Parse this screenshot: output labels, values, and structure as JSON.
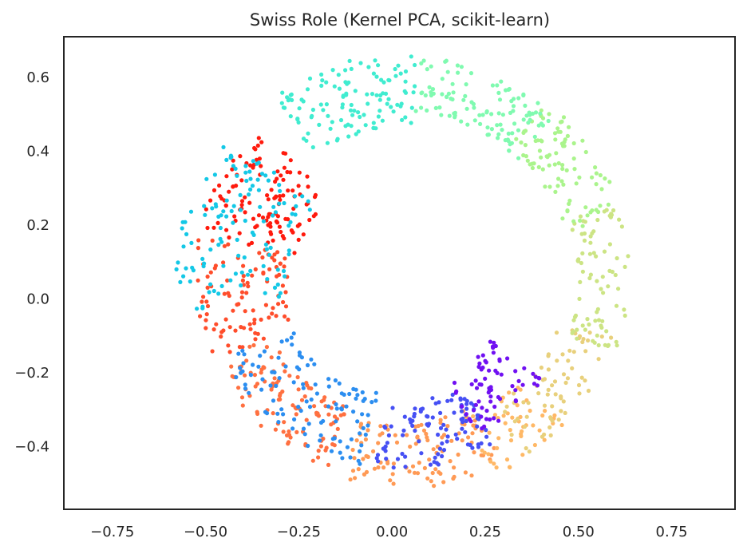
{
  "chart_data": {
    "type": "scatter",
    "title": "Swiss Role (Kernel PCA, scikit-learn)",
    "xlabel": "",
    "ylabel": "",
    "xlim": [
      -0.88,
      0.92
    ],
    "ylim": [
      -0.57,
      0.71
    ],
    "xticks": [
      "−0.75",
      "−0.50",
      "−0.25",
      "0.00",
      "0.25",
      "0.50",
      "0.75"
    ],
    "xtick_values": [
      -0.75,
      -0.5,
      -0.25,
      0.0,
      0.25,
      0.5,
      0.75
    ],
    "yticks": [
      "−0.4",
      "−0.2",
      "0.0",
      "0.2",
      "0.4",
      "0.6"
    ],
    "ytick_values": [
      -0.4,
      -0.2,
      0.0,
      0.2,
      0.4,
      0.6
    ],
    "grid": false,
    "legend": "none",
    "colormap": "rainbow",
    "series": [
      {
        "color": "#ff1a0d",
        "arc_start_deg": 168,
        "arc_end_deg": 132,
        "inner_radius": 0.28,
        "outer_radius": 0.55,
        "center": [
          0.02,
          0.06
        ],
        "count": 120
      },
      {
        "color": "#ff4d2b",
        "arc_start_deg": 205,
        "arc_end_deg": 168,
        "inner_radius": 0.3,
        "outer_radius": 0.55,
        "center": [
          0.02,
          0.06
        ],
        "count": 100
      },
      {
        "color": "#ff7040",
        "arc_start_deg": 250,
        "arc_end_deg": 205,
        "inner_radius": 0.38,
        "outer_radius": 0.55,
        "center": [
          0.02,
          0.06
        ],
        "count": 110
      },
      {
        "color": "#ff9a55",
        "arc_start_deg": 300,
        "arc_end_deg": 255,
        "inner_radius": 0.4,
        "outer_radius": 0.58,
        "center": [
          0.02,
          0.06
        ],
        "count": 110
      },
      {
        "color": "#ffb866",
        "arc_start_deg": 318,
        "arc_end_deg": 295,
        "inner_radius": 0.42,
        "outer_radius": 0.6,
        "center": [
          0.02,
          0.06
        ],
        "count": 50
      },
      {
        "color": "#e8d07c",
        "arc_start_deg": 345,
        "arc_end_deg": 305,
        "inner_radius": 0.44,
        "outer_radius": 0.6,
        "center": [
          0.02,
          0.06
        ],
        "count": 70
      },
      {
        "color": "#cce484",
        "arc_start_deg": 20,
        "arc_end_deg": 340,
        "inner_radius": 0.48,
        "outer_radius": 0.62,
        "center": [
          0.02,
          0.06
        ],
        "count": 80
      },
      {
        "color": "#aaf48c",
        "arc_start_deg": 50,
        "arc_end_deg": 15,
        "inner_radius": 0.46,
        "outer_radius": 0.62,
        "center": [
          0.02,
          0.06
        ],
        "count": 90
      },
      {
        "color": "#80fab0",
        "arc_start_deg": 85,
        "arc_end_deg": 45,
        "inner_radius": 0.45,
        "outer_radius": 0.6,
        "center": [
          0.02,
          0.06
        ],
        "count": 110
      },
      {
        "color": "#40ecd0",
        "arc_start_deg": 125,
        "arc_end_deg": 85,
        "inner_radius": 0.4,
        "outer_radius": 0.6,
        "center": [
          0.02,
          0.06
        ],
        "count": 120
      },
      {
        "color": "#14c8e6",
        "arc_start_deg": 190,
        "arc_end_deg": 140,
        "inner_radius": 0.3,
        "outer_radius": 0.6,
        "center": [
          0.02,
          0.06
        ],
        "count": 120
      },
      {
        "color": "#2c8ef0",
        "arc_start_deg": 260,
        "arc_end_deg": 205,
        "inner_radius": 0.32,
        "outer_radius": 0.52,
        "center": [
          0.02,
          0.06
        ],
        "count": 110
      },
      {
        "color": "#4650f4",
        "arc_start_deg": 300,
        "arc_end_deg": 262,
        "inner_radius": 0.34,
        "outer_radius": 0.52,
        "center": [
          0.02,
          0.06
        ],
        "count": 100
      },
      {
        "color": "#7010f2",
        "arc_start_deg": 325,
        "arc_end_deg": 295,
        "inner_radius": 0.3,
        "outer_radius": 0.48,
        "center": [
          0.02,
          0.06
        ],
        "count": 70
      }
    ]
  }
}
